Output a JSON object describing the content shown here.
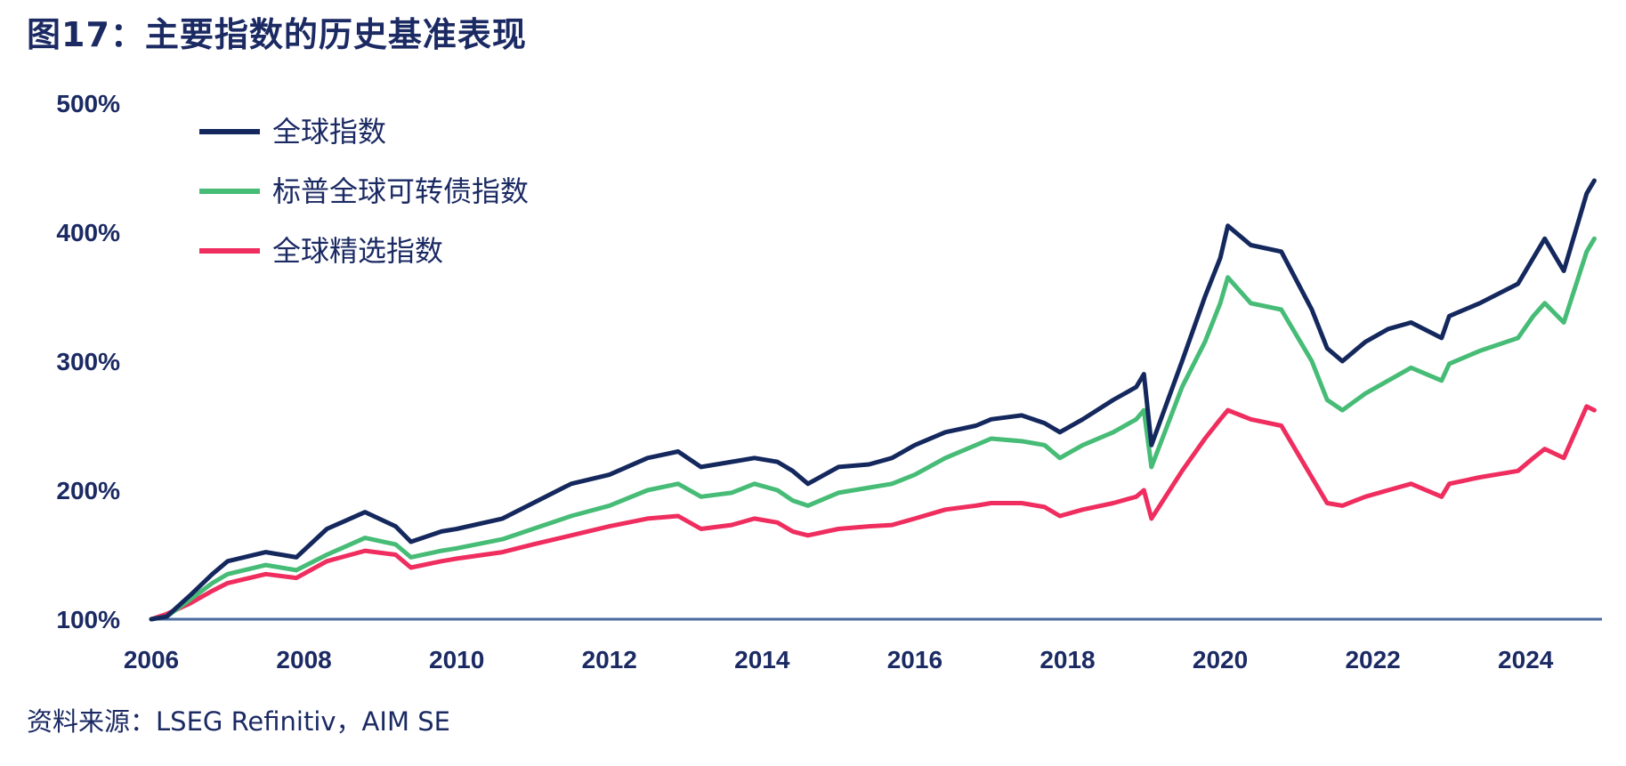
{
  "title": "图17：主要指数的历史基准表现",
  "source": "资料来源：LSEG Refinitiv，AIM SE",
  "chart_data": {
    "type": "line",
    "title": "图17：主要指数的历史基准表现",
    "xlabel": "",
    "ylabel": "",
    "xlim": [
      2006,
      2025
    ],
    "ylim": [
      100,
      500
    ],
    "x_ticks": [
      "2006",
      "2008",
      "2010",
      "2012",
      "2014",
      "2016",
      "2018",
      "2020",
      "2022",
      "2024"
    ],
    "y_ticks": [
      "100%",
      "200%",
      "300%",
      "400%",
      "500%"
    ],
    "legend_position": "top-left",
    "baseline": 100,
    "series": [
      {
        "name": "全球指数",
        "color": "#14285e",
        "x": [
          2006.0,
          2006.2,
          2006.5,
          2006.8,
          2007.0,
          2007.5,
          2007.9,
          2008.3,
          2008.8,
          2009.2,
          2009.4,
          2009.8,
          2010.0,
          2010.6,
          2011.0,
          2011.5,
          2012.0,
          2012.5,
          2012.9,
          2013.2,
          2013.6,
          2013.9,
          2014.2,
          2014.4,
          2014.6,
          2015.0,
          2015.4,
          2015.7,
          2016.0,
          2016.4,
          2016.8,
          2017.0,
          2017.4,
          2017.7,
          2017.9,
          2018.2,
          2018.6,
          2018.9,
          2019.0,
          2019.1,
          2019.5,
          2019.8,
          2020.0,
          2020.1,
          2020.4,
          2020.8,
          2021.2,
          2021.4,
          2021.6,
          2021.9,
          2022.2,
          2022.5,
          2022.9,
          2023.0,
          2023.4,
          2023.9,
          2024.1,
          2024.25,
          2024.5,
          2024.8,
          2024.9
        ],
        "values": [
          100,
          102,
          118,
          135,
          145,
          152,
          148,
          170,
          183,
          172,
          160,
          168,
          170,
          178,
          190,
          205,
          212,
          225,
          230,
          218,
          222,
          225,
          222,
          215,
          205,
          218,
          220,
          225,
          235,
          245,
          250,
          255,
          258,
          252,
          245,
          255,
          270,
          280,
          290,
          235,
          300,
          350,
          380,
          405,
          390,
          385,
          340,
          310,
          300,
          315,
          325,
          330,
          318,
          335,
          345,
          360,
          380,
          395,
          370,
          430,
          440
        ]
      },
      {
        "name": "标普全球可转债指数",
        "color": "#46bc76",
        "x": [
          2006.0,
          2006.2,
          2006.5,
          2006.8,
          2007.0,
          2007.5,
          2007.9,
          2008.3,
          2008.8,
          2009.2,
          2009.4,
          2009.8,
          2010.0,
          2010.6,
          2011.0,
          2011.5,
          2012.0,
          2012.5,
          2012.9,
          2013.2,
          2013.6,
          2013.9,
          2014.2,
          2014.4,
          2014.6,
          2015.0,
          2015.4,
          2015.7,
          2016.0,
          2016.4,
          2016.8,
          2017.0,
          2017.4,
          2017.7,
          2017.9,
          2018.2,
          2018.6,
          2018.9,
          2019.0,
          2019.1,
          2019.5,
          2019.8,
          2020.0,
          2020.1,
          2020.4,
          2020.8,
          2021.2,
          2021.4,
          2021.6,
          2021.9,
          2022.2,
          2022.5,
          2022.9,
          2023.0,
          2023.4,
          2023.9,
          2024.1,
          2024.25,
          2024.5,
          2024.8,
          2024.9
        ],
        "values": [
          100,
          102,
          115,
          128,
          135,
          142,
          138,
          150,
          163,
          158,
          148,
          153,
          155,
          162,
          170,
          180,
          188,
          200,
          205,
          195,
          198,
          205,
          200,
          192,
          188,
          198,
          202,
          205,
          212,
          225,
          235,
          240,
          238,
          235,
          225,
          235,
          245,
          255,
          262,
          218,
          280,
          315,
          345,
          365,
          345,
          340,
          300,
          270,
          262,
          275,
          285,
          295,
          285,
          298,
          308,
          318,
          335,
          345,
          330,
          385,
          395
        ]
      },
      {
        "name": "全球精选指数",
        "color": "#ef2d5e",
        "x": [
          2006.0,
          2006.2,
          2006.5,
          2006.8,
          2007.0,
          2007.5,
          2007.9,
          2008.3,
          2008.8,
          2009.2,
          2009.4,
          2009.8,
          2010.0,
          2010.6,
          2011.0,
          2011.5,
          2012.0,
          2012.5,
          2012.9,
          2013.2,
          2013.6,
          2013.9,
          2014.2,
          2014.4,
          2014.6,
          2015.0,
          2015.4,
          2015.7,
          2016.0,
          2016.4,
          2016.8,
          2017.0,
          2017.4,
          2017.7,
          2017.9,
          2018.2,
          2018.6,
          2018.9,
          2019.0,
          2019.1,
          2019.5,
          2019.8,
          2020.0,
          2020.1,
          2020.4,
          2020.8,
          2021.2,
          2021.4,
          2021.6,
          2021.9,
          2022.2,
          2022.5,
          2022.9,
          2023.0,
          2023.4,
          2023.9,
          2024.1,
          2024.25,
          2024.5,
          2024.8,
          2024.9
        ],
        "values": [
          100,
          104,
          112,
          122,
          128,
          135,
          132,
          145,
          153,
          150,
          140,
          145,
          147,
          152,
          158,
          165,
          172,
          178,
          180,
          170,
          173,
          178,
          175,
          168,
          165,
          170,
          172,
          173,
          178,
          185,
          188,
          190,
          190,
          187,
          180,
          185,
          190,
          195,
          200,
          178,
          215,
          240,
          255,
          262,
          255,
          250,
          210,
          190,
          188,
          195,
          200,
          205,
          195,
          205,
          210,
          215,
          225,
          232,
          225,
          265,
          262
        ]
      }
    ]
  }
}
